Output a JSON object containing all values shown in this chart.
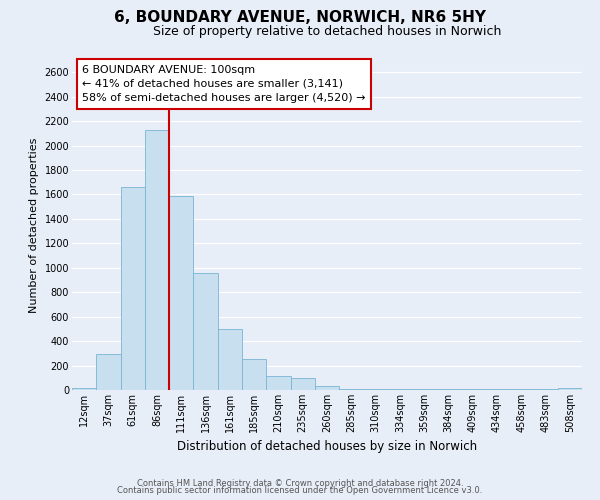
{
  "title": "6, BOUNDARY AVENUE, NORWICH, NR6 5HY",
  "subtitle": "Size of property relative to detached houses in Norwich",
  "xlabel": "Distribution of detached houses by size in Norwich",
  "ylabel": "Number of detached properties",
  "bar_labels": [
    "12sqm",
    "37sqm",
    "61sqm",
    "86sqm",
    "111sqm",
    "136sqm",
    "161sqm",
    "185sqm",
    "210sqm",
    "235sqm",
    "260sqm",
    "285sqm",
    "310sqm",
    "334sqm",
    "359sqm",
    "384sqm",
    "409sqm",
    "434sqm",
    "458sqm",
    "483sqm",
    "508sqm"
  ],
  "bar_values": [
    20,
    295,
    1665,
    2130,
    1590,
    960,
    500,
    250,
    115,
    95,
    30,
    5,
    5,
    5,
    5,
    5,
    5,
    5,
    5,
    5,
    15
  ],
  "bar_color": "#c8dff0",
  "bar_edge_color": "#7ab4d4",
  "ylim": [
    0,
    2700
  ],
  "yticks": [
    0,
    200,
    400,
    600,
    800,
    1000,
    1200,
    1400,
    1600,
    1800,
    2000,
    2200,
    2400,
    2600
  ],
  "vline_pos": 3.5,
  "vline_color": "#cc0000",
  "annotation_title": "6 BOUNDARY AVENUE: 100sqm",
  "annotation_line1": "← 41% of detached houses are smaller (3,141)",
  "annotation_line2": "58% of semi-detached houses are larger (4,520) →",
  "annotation_box_facecolor": "#ffffff",
  "annotation_box_edgecolor": "#cc0000",
  "footer_line1": "Contains HM Land Registry data © Crown copyright and database right 2024.",
  "footer_line2": "Contains public sector information licensed under the Open Government Licence v3.0.",
  "fig_facecolor": "#e8eef8",
  "ax_facecolor": "#e8eef8",
  "grid_color": "#ffffff",
  "title_fontsize": 11,
  "subtitle_fontsize": 9,
  "ylabel_fontsize": 8,
  "xlabel_fontsize": 8.5,
  "tick_fontsize": 7,
  "footer_fontsize": 6,
  "annot_fontsize": 8
}
